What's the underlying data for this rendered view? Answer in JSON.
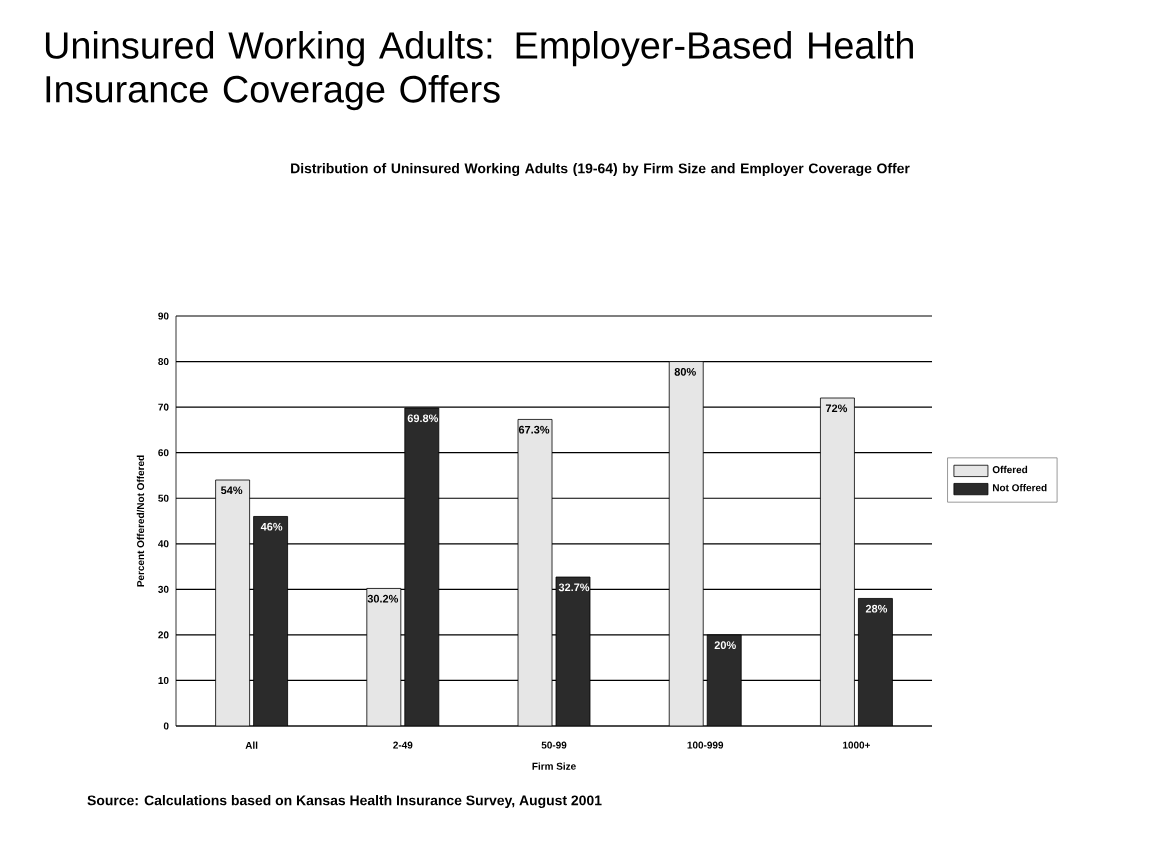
{
  "chart_data": {
    "type": "bar",
    "title": "Uninsured Working Adults: Employer-Based Health Insurance Coverage Offers",
    "subtitle": "Distribution of Uninsured Working Adults (19-64) by Firm Size and Employer Coverage Offer",
    "xlabel": "Firm Size",
    "ylabel": "Percent Offered/Not Offered",
    "categories": [
      "All",
      "2-49",
      "50-99",
      "100-999",
      "1000+"
    ],
    "series": [
      {
        "name": "Offered",
        "color": "#e6e6e6",
        "values": [
          54,
          30.2,
          67.3,
          80,
          72
        ],
        "value_labels": [
          "54%",
          "30.2%",
          "67.3%",
          "80%",
          "72%"
        ]
      },
      {
        "name": "Not Offered",
        "color": "#2b2b2b",
        "values": [
          46,
          69.8,
          32.7,
          20,
          28
        ],
        "value_labels": [
          "46%",
          "69.8%",
          "32.7%",
          "20%",
          "28%"
        ]
      }
    ],
    "ylim": [
      0,
      90
    ],
    "yticks": [
      0,
      10,
      20,
      30,
      40,
      50,
      60,
      70,
      80,
      90
    ],
    "grid": "y",
    "legend": "right",
    "annotations": [
      "Source: Calculations based on Kansas Health Insurance Survey, August 2001"
    ]
  }
}
